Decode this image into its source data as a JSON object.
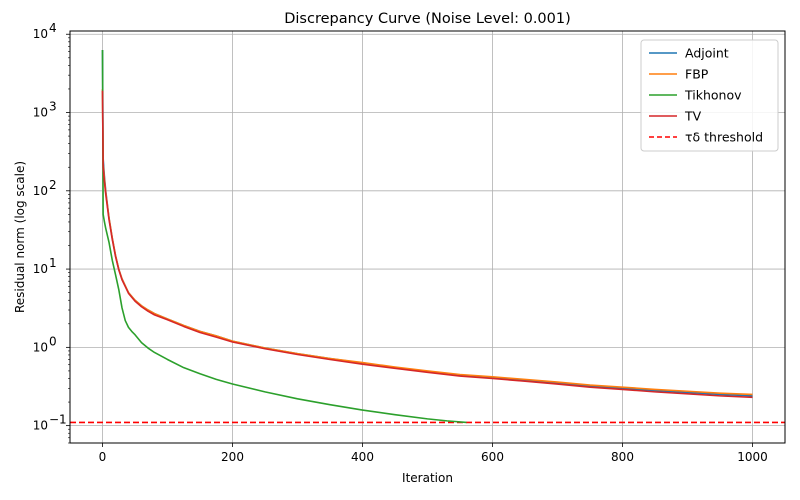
{
  "chart_data": {
    "type": "line",
    "title": "Discrepancy Curve (Noise Level: 0.001)",
    "xlabel": "Iteration",
    "ylabel": "Residual norm (log scale)",
    "xlim": [
      -50,
      1050
    ],
    "ylim": [
      0.06,
      11000
    ],
    "yscale": "log",
    "grid": true,
    "legend_position": "top-right",
    "x_ticks": [
      0,
      200,
      400,
      600,
      800,
      1000
    ],
    "x_tick_labels": [
      "0",
      "200",
      "400",
      "600",
      "800",
      "1000"
    ],
    "y_ticks": [
      0.1,
      1,
      10,
      100,
      1000,
      10000
    ],
    "y_tick_labels": [
      "10",
      "10",
      "10",
      "10",
      "10",
      "10"
    ],
    "y_tick_exponents": [
      "−1",
      "0",
      "1",
      "2",
      "3",
      "4"
    ],
    "series": [
      {
        "name": "Adjoint",
        "color": "#1f77b4",
        "points": [
          [
            0,
            6300
          ],
          [
            1,
            260
          ],
          [
            3,
            150
          ],
          [
            5,
            100
          ],
          [
            10,
            45
          ],
          [
            15,
            25
          ],
          [
            20,
            15
          ],
          [
            25,
            10
          ],
          [
            30,
            7.5
          ],
          [
            40,
            5
          ],
          [
            50,
            4
          ],
          [
            60,
            3.4
          ],
          [
            70,
            3.0
          ],
          [
            80,
            2.7
          ],
          [
            100,
            2.3
          ],
          [
            125,
            1.9
          ],
          [
            150,
            1.6
          ],
          [
            175,
            1.4
          ],
          [
            200,
            1.2
          ],
          [
            250,
            0.98
          ],
          [
            300,
            0.83
          ],
          [
            350,
            0.72
          ],
          [
            400,
            0.63
          ],
          [
            450,
            0.55
          ],
          [
            500,
            0.49
          ],
          [
            550,
            0.44
          ],
          [
            600,
            0.41
          ],
          [
            650,
            0.38
          ],
          [
            700,
            0.35
          ],
          [
            750,
            0.32
          ],
          [
            800,
            0.3
          ],
          [
            850,
            0.28
          ],
          [
            900,
            0.265
          ],
          [
            950,
            0.25
          ],
          [
            1000,
            0.24
          ]
        ]
      },
      {
        "name": "FBP",
        "color": "#ff7f0e",
        "points": [
          [
            0,
            2000
          ],
          [
            1,
            220
          ],
          [
            3,
            140
          ],
          [
            5,
            95
          ],
          [
            10,
            45
          ],
          [
            15,
            25
          ],
          [
            20,
            15
          ],
          [
            25,
            10
          ],
          [
            30,
            7.5
          ],
          [
            40,
            5
          ],
          [
            50,
            4
          ],
          [
            60,
            3.4
          ],
          [
            70,
            3.0
          ],
          [
            80,
            2.7
          ],
          [
            100,
            2.3
          ],
          [
            125,
            1.9
          ],
          [
            150,
            1.6
          ],
          [
            175,
            1.4
          ],
          [
            200,
            1.2
          ],
          [
            250,
            0.98
          ],
          [
            300,
            0.83
          ],
          [
            350,
            0.72
          ],
          [
            400,
            0.64
          ],
          [
            450,
            0.56
          ],
          [
            500,
            0.5
          ],
          [
            550,
            0.45
          ],
          [
            600,
            0.42
          ],
          [
            650,
            0.39
          ],
          [
            700,
            0.36
          ],
          [
            750,
            0.33
          ],
          [
            800,
            0.31
          ],
          [
            850,
            0.29
          ],
          [
            900,
            0.275
          ],
          [
            950,
            0.26
          ],
          [
            1000,
            0.25
          ]
        ]
      },
      {
        "name": "Tikhonov",
        "color": "#2ca02c",
        "points": [
          [
            0,
            6300
          ],
          [
            1,
            50
          ],
          [
            3,
            40
          ],
          [
            5,
            33
          ],
          [
            10,
            22
          ],
          [
            15,
            13
          ],
          [
            20,
            8.5
          ],
          [
            25,
            5.5
          ],
          [
            30,
            3.2
          ],
          [
            35,
            2.2
          ],
          [
            40,
            1.8
          ],
          [
            45,
            1.6
          ],
          [
            50,
            1.45
          ],
          [
            60,
            1.15
          ],
          [
            70,
            0.98
          ],
          [
            80,
            0.86
          ],
          [
            100,
            0.7
          ],
          [
            125,
            0.55
          ],
          [
            150,
            0.46
          ],
          [
            175,
            0.39
          ],
          [
            200,
            0.34
          ],
          [
            250,
            0.27
          ],
          [
            300,
            0.22
          ],
          [
            350,
            0.185
          ],
          [
            400,
            0.158
          ],
          [
            450,
            0.138
          ],
          [
            500,
            0.122
          ],
          [
            530,
            0.115
          ],
          [
            560,
            0.11
          ]
        ]
      },
      {
        "name": "TV",
        "color": "#d62728",
        "points": [
          [
            0,
            1900
          ],
          [
            1,
            200
          ],
          [
            3,
            130
          ],
          [
            5,
            90
          ],
          [
            10,
            43
          ],
          [
            15,
            24
          ],
          [
            20,
            14.5
          ],
          [
            25,
            9.8
          ],
          [
            30,
            7.3
          ],
          [
            40,
            4.9
          ],
          [
            50,
            3.9
          ],
          [
            60,
            3.3
          ],
          [
            70,
            2.9
          ],
          [
            80,
            2.6
          ],
          [
            100,
            2.25
          ],
          [
            125,
            1.85
          ],
          [
            150,
            1.55
          ],
          [
            175,
            1.35
          ],
          [
            200,
            1.17
          ],
          [
            250,
            0.96
          ],
          [
            300,
            0.81
          ],
          [
            350,
            0.7
          ],
          [
            400,
            0.61
          ],
          [
            450,
            0.54
          ],
          [
            500,
            0.48
          ],
          [
            550,
            0.43
          ],
          [
            600,
            0.4
          ],
          [
            650,
            0.37
          ],
          [
            700,
            0.34
          ],
          [
            750,
            0.31
          ],
          [
            800,
            0.29
          ],
          [
            850,
            0.27
          ],
          [
            900,
            0.255
          ],
          [
            950,
            0.24
          ],
          [
            1000,
            0.23
          ]
        ]
      }
    ],
    "threshold": {
      "name": "τδ threshold",
      "value": 0.11,
      "color": "#ff0000",
      "style": "dashed"
    }
  }
}
